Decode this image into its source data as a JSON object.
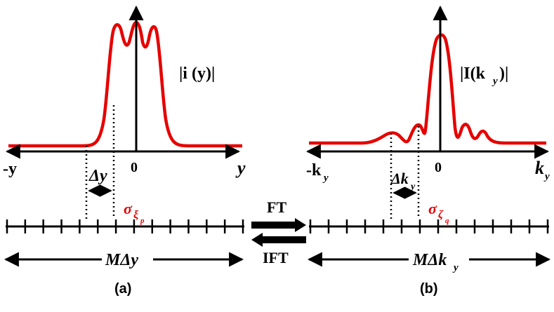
{
  "panel_a": {
    "function_label": "|i (y)|",
    "axis_neg_label": "-y",
    "axis_pos_label": "y",
    "origin_label": "0",
    "interval_label": "Δy",
    "sigma_label": "σ",
    "sigma_sub": "ξ",
    "sigma_subsub": "p",
    "range_label": "MΔy",
    "caption": "(a)"
  },
  "panel_b": {
    "function_label": "|I(k",
    "function_label_sub": "y",
    "function_label_end": ")|",
    "axis_neg_label": "-k",
    "axis_neg_sub": "y",
    "axis_pos_label": "k",
    "axis_pos_sub": "y",
    "origin_label": "0",
    "interval_label": "Δk",
    "interval_sub": "y",
    "sigma_label": "σ",
    "sigma_sub": "ζ",
    "sigma_subsub": "q",
    "range_label": "MΔk",
    "range_sub": "y",
    "caption": "(b)"
  },
  "transform": {
    "forward_label": "FT",
    "inverse_label": "IFT"
  },
  "colors": {
    "curve": "#e60000",
    "sigma": "#e60000",
    "axis": "#000000"
  }
}
